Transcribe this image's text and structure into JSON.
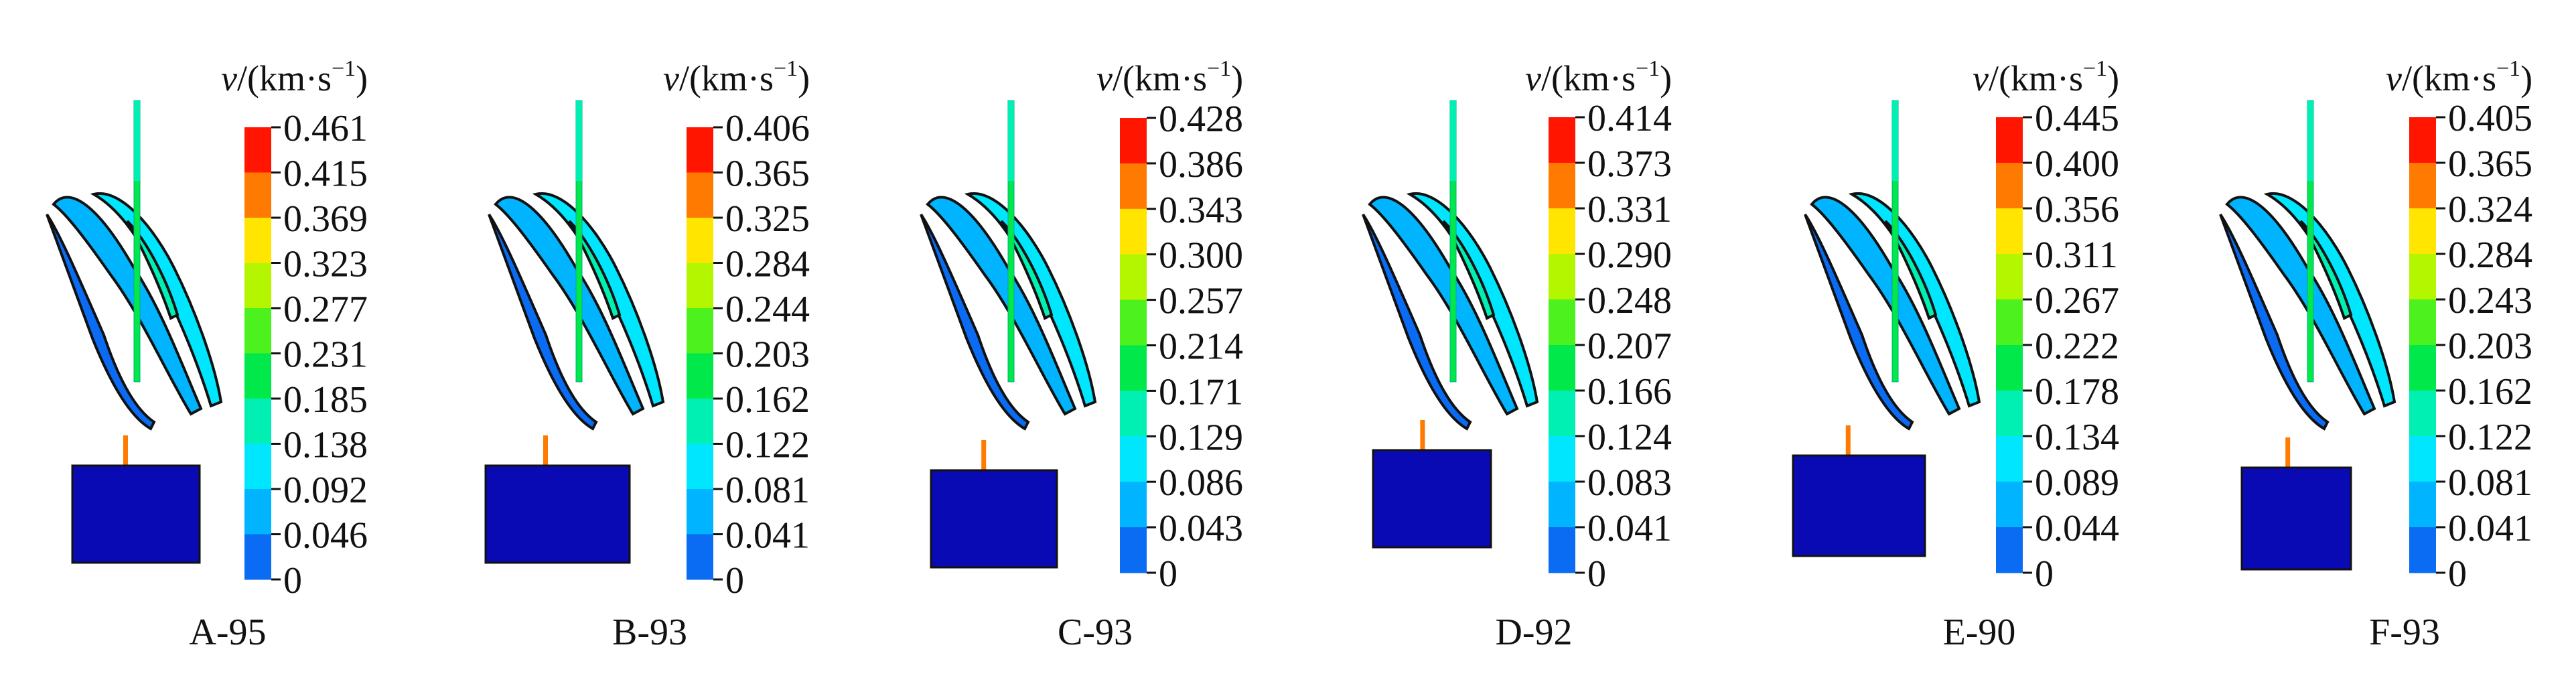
{
  "unit_label": {
    "var": "v",
    "rest": "/(km·s",
    "sup": "−1",
    "close": ")"
  },
  "panels": [
    {
      "label": "A-95",
      "ticks": [
        "0.461",
        "0.415",
        "0.369",
        "0.323",
        "0.277",
        "0.231",
        "0.185",
        "0.138",
        "0.092",
        "0.046",
        "0"
      ]
    },
    {
      "label": "B-93",
      "ticks": [
        "0.406",
        "0.365",
        "0.325",
        "0.284",
        "0.244",
        "0.203",
        "0.162",
        "0.122",
        "0.081",
        "0.041",
        "0"
      ]
    },
    {
      "label": "C-93",
      "ticks": [
        "0.428",
        "0.386",
        "0.343",
        "0.300",
        "0.257",
        "0.214",
        "0.171",
        "0.129",
        "0.086",
        "0.043",
        "0"
      ]
    },
    {
      "label": "D-92",
      "ticks": [
        "0.414",
        "0.373",
        "0.331",
        "0.290",
        "0.248",
        "0.207",
        "0.166",
        "0.124",
        "0.083",
        "0.041",
        "0"
      ]
    },
    {
      "label": "E-90",
      "ticks": [
        "0.445",
        "0.400",
        "0.356",
        "0.311",
        "0.267",
        "0.222",
        "0.178",
        "0.134",
        "0.089",
        "0.044",
        "0"
      ]
    },
    {
      "label": "F-93",
      "ticks": [
        "0.405",
        "0.365",
        "0.324",
        "0.284",
        "0.243",
        "0.203",
        "0.162",
        "0.122",
        "0.081",
        "0.041",
        "0"
      ]
    }
  ],
  "colormap": [
    "#0000ff",
    "#0a6cf2",
    "#00b4ff",
    "#00e6ff",
    "#00f0b4",
    "#00e84a",
    "#4df21e",
    "#b4f500",
    "#ffe500",
    "#ff7a00",
    "#ff1500"
  ],
  "block_color": "#0a0ab4"
}
